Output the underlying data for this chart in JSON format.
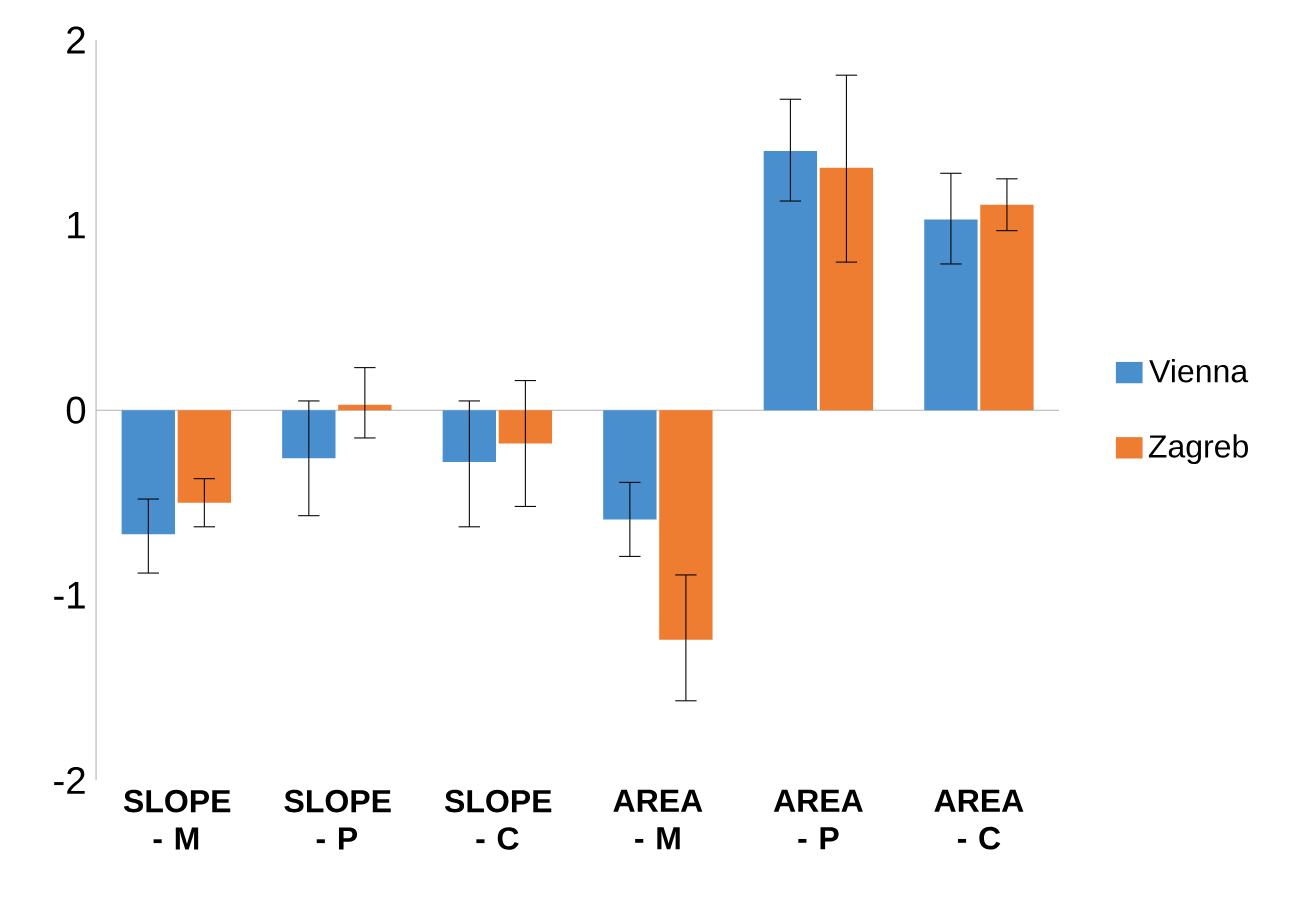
{
  "chart_data": {
    "type": "bar",
    "categories": [
      "SLOPE - M",
      "SLOPE - P",
      "SLOPE - C",
      "AREA - M",
      "AREA - P",
      "AREA - C"
    ],
    "series": [
      {
        "name": "Vienna",
        "color": "#4a8fcd",
        "values": [
          -0.67,
          -0.26,
          -0.28,
          -0.59,
          1.4,
          1.03
        ],
        "errors": [
          [
            -0.88,
            -0.48
          ],
          [
            -0.57,
            0.05
          ],
          [
            -0.63,
            0.05
          ],
          [
            -0.79,
            -0.39
          ],
          [
            1.13,
            1.68
          ],
          [
            0.79,
            1.28
          ]
        ]
      },
      {
        "name": "Zagreb",
        "color": "#ee7d31",
        "values": [
          -0.5,
          0.03,
          -0.18,
          -1.24,
          1.31,
          1.11
        ],
        "errors": [
          [
            -0.63,
            -0.37
          ],
          [
            -0.15,
            0.23
          ],
          [
            -0.52,
            0.16
          ],
          [
            -1.57,
            -0.89
          ],
          [
            0.8,
            1.81
          ],
          [
            0.97,
            1.25
          ]
        ]
      }
    ],
    "ylim": [
      -2,
      2
    ],
    "yticks": [
      -2,
      -1,
      0,
      1,
      2
    ],
    "legend": "right"
  }
}
